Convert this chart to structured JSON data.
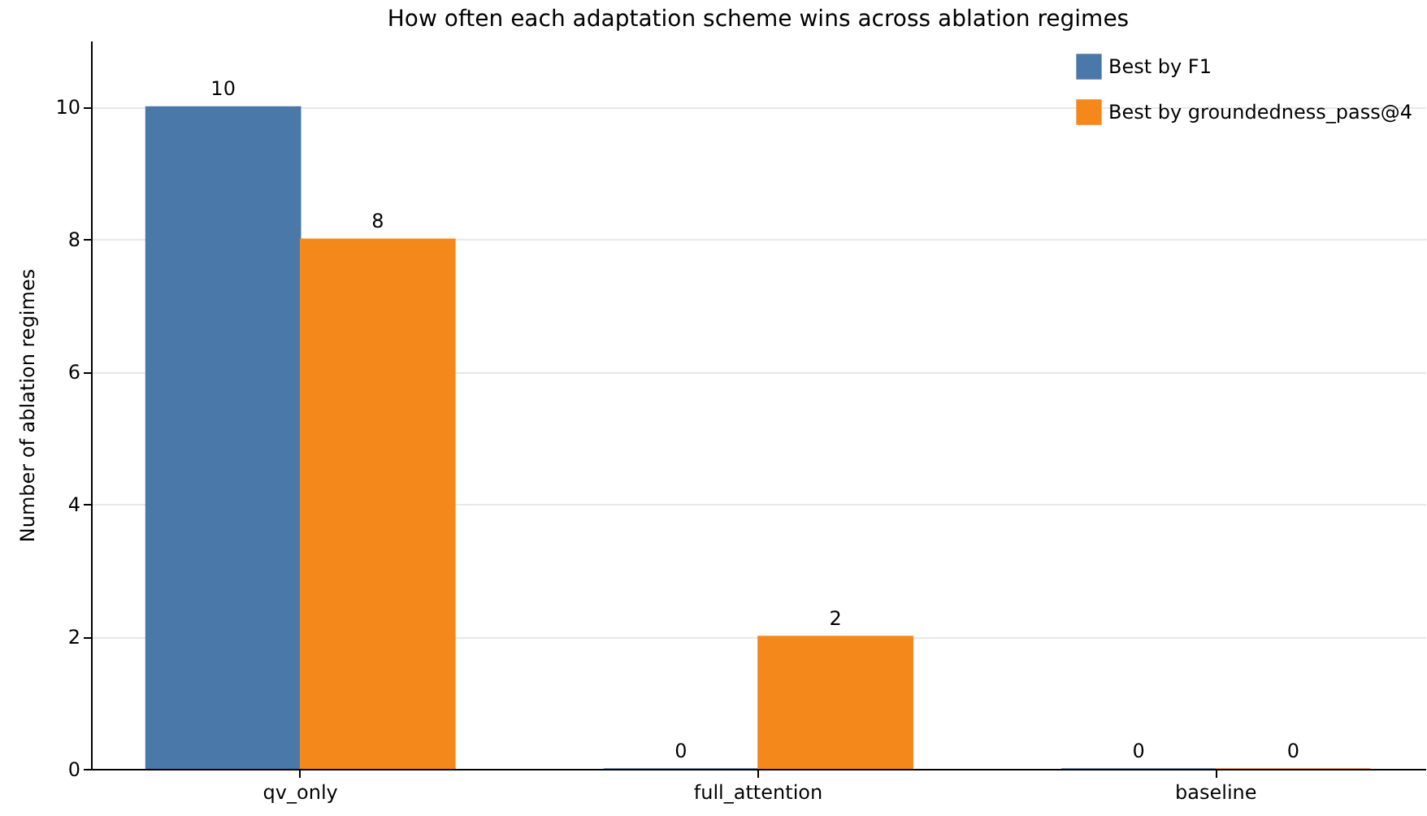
{
  "chart_data": {
    "type": "bar",
    "title": "How often each adaptation scheme wins across ablation regimes",
    "ylabel": "Number of ablation regimes",
    "categories": [
      "qv_only",
      "full_attention",
      "baseline"
    ],
    "series": [
      {
        "name": "Best by F1",
        "color": "#4a78a8",
        "values": [
          10,
          0,
          0
        ]
      },
      {
        "name": "Best by groundedness_pass@4",
        "color": "#f5881b",
        "values": [
          8,
          2,
          0
        ]
      }
    ],
    "ylim": [
      0,
      11
    ],
    "yticks": [
      0,
      2,
      4,
      6,
      8,
      10
    ],
    "grid": "y",
    "legend": "top right",
    "data_labels": true
  }
}
